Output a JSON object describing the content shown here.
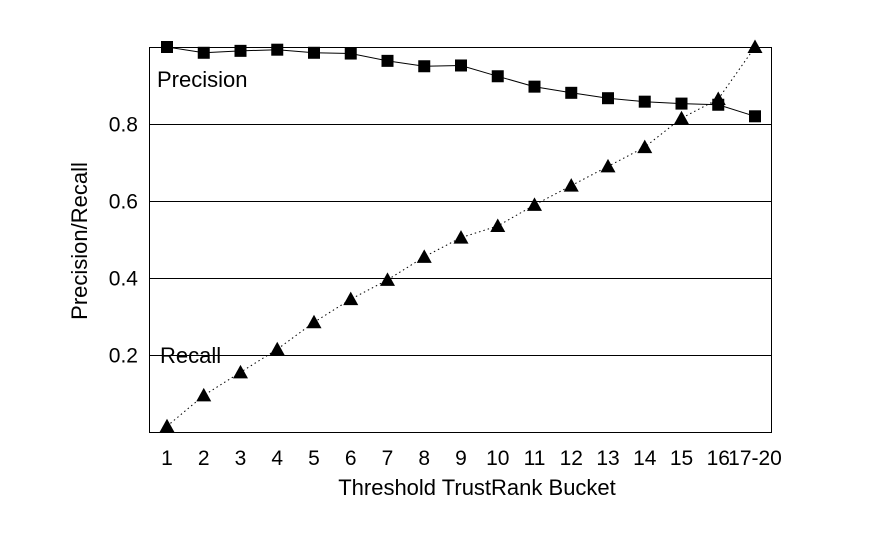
{
  "chart_data": {
    "type": "line",
    "xlabel": "Threshold TrustRank Bucket",
    "ylabel": "Precision/Recall",
    "categories": [
      "1",
      "2",
      "3",
      "4",
      "5",
      "6",
      "7",
      "8",
      "9",
      "10",
      "11",
      "12",
      "13",
      "14",
      "15",
      "16",
      "17-20"
    ],
    "ylim": [
      0.0,
      1.0
    ],
    "y_ticks": [
      {
        "value": 0.2,
        "label": "0.2"
      },
      {
        "value": 0.4,
        "label": "0.4"
      },
      {
        "value": 0.6,
        "label": "0.6"
      },
      {
        "value": 0.8,
        "label": "0.8"
      }
    ],
    "grid": "horizontal",
    "series": [
      {
        "name": "Precision",
        "marker": "square",
        "line_style": "solid",
        "values": [
          1.0,
          0.985,
          0.99,
          0.993,
          0.985,
          0.983,
          0.964,
          0.95,
          0.952,
          0.924,
          0.897,
          0.881,
          0.867,
          0.858,
          0.853,
          0.85,
          0.82
        ]
      },
      {
        "name": "Recall",
        "marker": "triangle",
        "line_style": "dotted",
        "values": [
          0.015,
          0.095,
          0.155,
          0.215,
          0.285,
          0.345,
          0.395,
          0.455,
          0.505,
          0.535,
          0.59,
          0.64,
          0.69,
          0.74,
          0.815,
          0.865,
          1.0
        ]
      }
    ],
    "colors": {
      "lines": "#000000",
      "grid": "#000000",
      "background": "#ffffff"
    }
  }
}
